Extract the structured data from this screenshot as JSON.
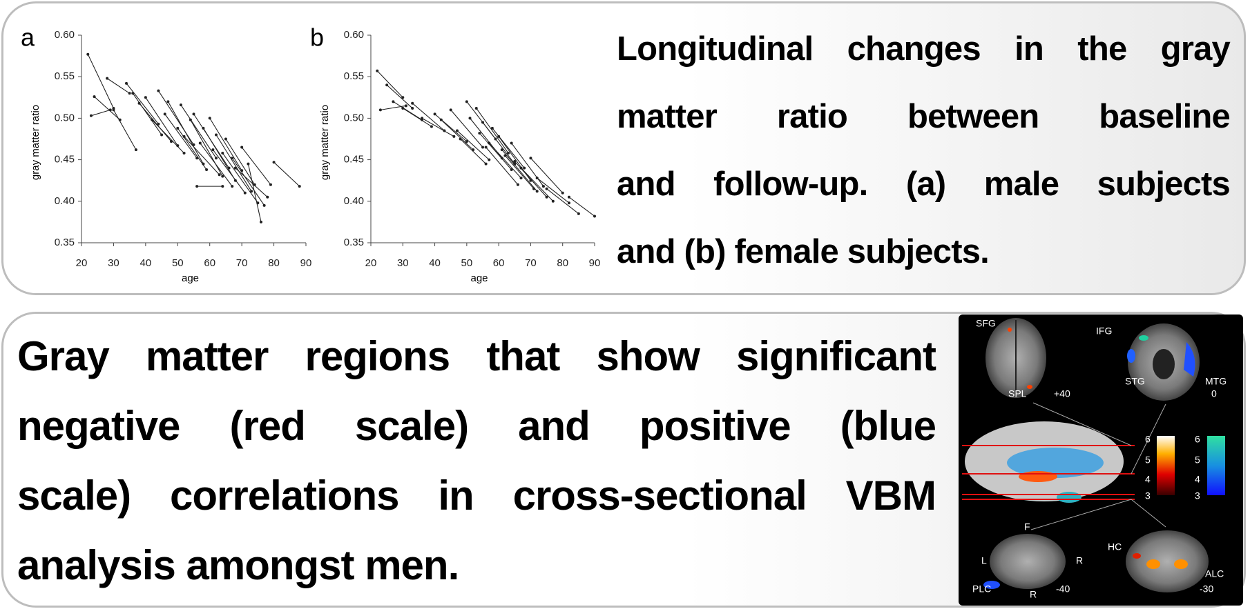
{
  "chart_data": [
    {
      "type": "line",
      "label": "a",
      "x_label": "age",
      "y_label": "gray matter ratio",
      "color": "#222222",
      "xlim": [
        20,
        90
      ],
      "xticks": [
        20,
        30,
        40,
        50,
        60,
        70,
        80,
        90
      ],
      "ylim": [
        0.35,
        0.6
      ],
      "yticks": [
        0.35,
        {
          "value": 0.4,
          "label": "0.40"
        },
        0.45,
        {
          "value": 0.5,
          "label": "0.50"
        },
        0.55,
        {
          "value": 0.6,
          "label": "0.60"
        }
      ],
      "series": [
        {
          "x": [
            22,
            30
          ],
          "values": [
            0.577,
            0.512
          ]
        },
        {
          "x": [
            23,
            29
          ],
          "values": [
            0.503,
            0.51
          ]
        },
        {
          "x": [
            24,
            32
          ],
          "values": [
            0.526,
            0.498
          ]
        },
        {
          "x": [
            28,
            35
          ],
          "values": [
            0.548,
            0.53
          ]
        },
        {
          "x": [
            30,
            37
          ],
          "values": [
            0.51,
            0.462
          ]
        },
        {
          "x": [
            34,
            44
          ],
          "values": [
            0.542,
            0.493
          ]
        },
        {
          "x": [
            36,
            45
          ],
          "values": [
            0.53,
            0.48
          ]
        },
        {
          "x": [
            38,
            48
          ],
          "values": [
            0.518,
            0.472
          ]
        },
        {
          "x": [
            40,
            50
          ],
          "values": [
            0.525,
            0.467
          ]
        },
        {
          "x": [
            42,
            52
          ],
          "values": [
            0.498,
            0.458
          ]
        },
        {
          "x": [
            44,
            55
          ],
          "values": [
            0.533,
            0.468
          ]
        },
        {
          "x": [
            46,
            56
          ],
          "values": [
            0.505,
            0.452
          ]
        },
        {
          "x": [
            47,
            58
          ],
          "values": [
            0.52,
            0.445
          ]
        },
        {
          "x": [
            50,
            59
          ],
          "values": [
            0.488,
            0.438
          ]
        },
        {
          "x": [
            51,
            62
          ],
          "values": [
            0.516,
            0.452
          ]
        },
        {
          "x": [
            52,
            63
          ],
          "values": [
            0.478,
            0.432
          ]
        },
        {
          "x": [
            54,
            64
          ],
          "values": [
            0.498,
            0.43
          ]
        },
        {
          "x": [
            55,
            66
          ],
          "values": [
            0.505,
            0.44
          ]
        },
        {
          "x": [
            57,
            67
          ],
          "values": [
            0.47,
            0.418
          ]
        },
        {
          "x": [
            58,
            68
          ],
          "values": [
            0.488,
            0.425
          ]
        },
        {
          "x": [
            60,
            70
          ],
          "values": [
            0.5,
            0.437
          ]
        },
        {
          "x": [
            61,
            71
          ],
          "values": [
            0.462,
            0.41
          ]
        },
        {
          "x": [
            62,
            73
          ],
          "values": [
            0.48,
            0.412
          ]
        },
        {
          "x": [
            64,
            75
          ],
          "values": [
            0.458,
            0.398
          ]
        },
        {
          "x": [
            65,
            74
          ],
          "values": [
            0.475,
            0.42
          ]
        },
        {
          "x": [
            67,
            77
          ],
          "values": [
            0.452,
            0.395
          ]
        },
        {
          "x": [
            68,
            78
          ],
          "values": [
            0.44,
            0.405
          ]
        },
        {
          "x": [
            70,
            79
          ],
          "values": [
            0.465,
            0.42
          ]
        },
        {
          "x": [
            80,
            88
          ],
          "values": [
            0.447,
            0.418
          ]
        },
        {
          "x": [
            56,
            64
          ],
          "values": [
            0.418,
            0.418
          ]
        },
        {
          "x": [
            72,
            76
          ],
          "values": [
            0.445,
            0.375
          ]
        }
      ]
    },
    {
      "type": "line",
      "label": "b",
      "x_label": "age",
      "y_label": "gray matter ratio",
      "color": "#222222",
      "xlim": [
        20,
        90
      ],
      "xticks": [
        20,
        30,
        40,
        50,
        60,
        70,
        80,
        90
      ],
      "ylim": [
        0.35,
        0.6
      ],
      "yticks": [
        0.35,
        {
          "value": 0.4,
          "label": "0.40"
        },
        0.45,
        {
          "value": 0.5,
          "label": "0.50"
        },
        0.55,
        {
          "value": 0.6,
          "label": "0.60"
        }
      ],
      "series": [
        {
          "x": [
            22,
            30
          ],
          "values": [
            0.557,
            0.525
          ]
        },
        {
          "x": [
            23,
            31
          ],
          "values": [
            0.51,
            0.515
          ]
        },
        {
          "x": [
            25,
            33
          ],
          "values": [
            0.54,
            0.512
          ]
        },
        {
          "x": [
            27,
            36
          ],
          "values": [
            0.52,
            0.498
          ]
        },
        {
          "x": [
            30,
            39
          ],
          "values": [
            0.512,
            0.49
          ]
        },
        {
          "x": [
            33,
            43
          ],
          "values": [
            0.518,
            0.485
          ]
        },
        {
          "x": [
            36,
            46
          ],
          "values": [
            0.5,
            0.478
          ]
        },
        {
          "x": [
            40,
            50
          ],
          "values": [
            0.505,
            0.472
          ]
        },
        {
          "x": [
            42,
            52
          ],
          "values": [
            0.498,
            0.462
          ]
        },
        {
          "x": [
            45,
            55
          ],
          "values": [
            0.51,
            0.465
          ]
        },
        {
          "x": [
            47,
            57
          ],
          "values": [
            0.485,
            0.45
          ]
        },
        {
          "x": [
            50,
            59
          ],
          "values": [
            0.52,
            0.475
          ]
        },
        {
          "x": [
            51,
            61
          ],
          "values": [
            0.5,
            0.452
          ]
        },
        {
          "x": [
            53,
            63
          ],
          "values": [
            0.512,
            0.458
          ]
        },
        {
          "x": [
            54,
            64
          ],
          "values": [
            0.482,
            0.438
          ]
        },
        {
          "x": [
            55,
            65
          ],
          "values": [
            0.495,
            0.445
          ]
        },
        {
          "x": [
            57,
            67
          ],
          "values": [
            0.47,
            0.428
          ]
        },
        {
          "x": [
            58,
            68
          ],
          "values": [
            0.488,
            0.44
          ]
        },
        {
          "x": [
            60,
            70
          ],
          "values": [
            0.478,
            0.425
          ]
        },
        {
          "x": [
            61,
            72
          ],
          "values": [
            0.462,
            0.412
          ]
        },
        {
          "x": [
            62,
            71
          ],
          "values": [
            0.455,
            0.415
          ]
        },
        {
          "x": [
            64,
            74
          ],
          "values": [
            0.47,
            0.418
          ]
        },
        {
          "x": [
            65,
            75
          ],
          "values": [
            0.448,
            0.405
          ]
        },
        {
          "x": [
            67,
            77
          ],
          "values": [
            0.44,
            0.4
          ]
        },
        {
          "x": [
            70,
            80
          ],
          "values": [
            0.452,
            0.41
          ]
        },
        {
          "x": [
            72,
            82
          ],
          "values": [
            0.428,
            0.398
          ]
        },
        {
          "x": [
            75,
            85
          ],
          "values": [
            0.415,
            0.385
          ]
        },
        {
          "x": [
            82,
            90
          ],
          "values": [
            0.405,
            0.382
          ]
        },
        {
          "x": [
            48,
            56
          ],
          "values": [
            0.475,
            0.445
          ]
        },
        {
          "x": [
            56,
            66
          ],
          "values": [
            0.465,
            0.42
          ]
        }
      ]
    }
  ],
  "top_caption": [
    "Longitudinal changes in the gray",
    "matter ratio between baseline",
    "and follow-up. (a) male subjects",
    "and (b) female subjects."
  ],
  "bottom_caption": [
    "Gray matter regions that show significant",
    "negative (red scale) and positive (blue",
    "scale) correlations in cross-sectional VBM",
    "analysis amongst men."
  ],
  "brain_figure": {
    "labels": [
      "SFG",
      "IFG",
      "STG",
      "MTG",
      "SPL",
      "+40",
      "0",
      "F",
      "L",
      "R",
      "HC",
      "ALC",
      "PLC",
      "R",
      "-40",
      "-30"
    ],
    "colorbars": [
      {
        "ticks": [
          6,
          5,
          4,
          3
        ]
      },
      {
        "ticks": [
          6,
          5,
          4,
          3
        ]
      }
    ]
  }
}
